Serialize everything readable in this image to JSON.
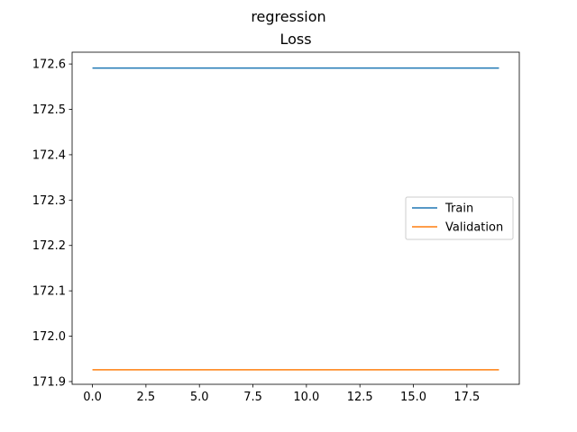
{
  "figure": {
    "suptitle": "regression"
  },
  "chart_data": {
    "type": "line",
    "title": "Loss",
    "xlabel": "",
    "ylabel": "",
    "xlim": [
      -0.95,
      19.95
    ],
    "ylim": [
      171.894,
      172.626
    ],
    "x_ticks": [
      0.0,
      2.5,
      5.0,
      7.5,
      10.0,
      12.5,
      15.0,
      17.5
    ],
    "x_tick_labels": [
      "0.0",
      "2.5",
      "5.0",
      "7.5",
      "10.0",
      "12.5",
      "15.0",
      "17.5"
    ],
    "y_ticks": [
      171.9,
      172.0,
      172.1,
      172.2,
      172.3,
      172.4,
      172.5,
      172.6
    ],
    "y_tick_labels": [
      "171.9",
      "172.0",
      "172.1",
      "172.2",
      "172.3",
      "172.4",
      "172.5",
      "172.6"
    ],
    "grid": false,
    "legend_position": "center-right",
    "x": [
      0,
      1,
      2,
      3,
      4,
      5,
      6,
      7,
      8,
      9,
      10,
      11,
      12,
      13,
      14,
      15,
      16,
      17,
      18,
      19
    ],
    "series": [
      {
        "name": "Train",
        "color": "#1f77b4",
        "values": [
          172.591,
          172.591,
          172.591,
          172.591,
          172.591,
          172.591,
          172.591,
          172.591,
          172.591,
          172.591,
          172.591,
          172.591,
          172.591,
          172.591,
          172.591,
          172.591,
          172.591,
          172.591,
          172.591,
          172.591
        ]
      },
      {
        "name": "Validation",
        "color": "#ff7f0e",
        "values": [
          171.926,
          171.926,
          171.926,
          171.926,
          171.926,
          171.926,
          171.926,
          171.926,
          171.926,
          171.926,
          171.926,
          171.926,
          171.926,
          171.926,
          171.926,
          171.926,
          171.926,
          171.926,
          171.926,
          171.926
        ]
      }
    ]
  }
}
